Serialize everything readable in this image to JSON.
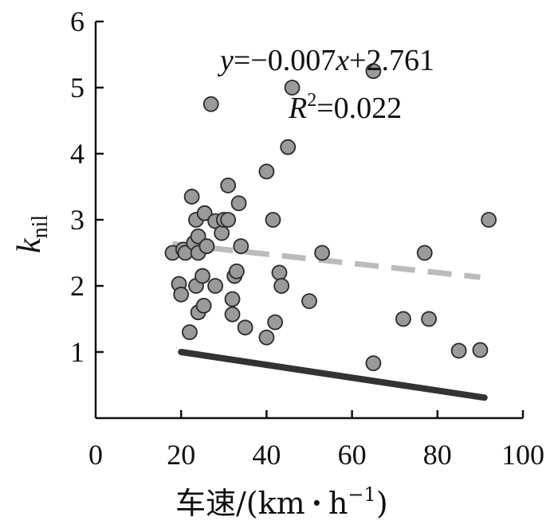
{
  "chart_data": {
    "type": "scatter",
    "xlabel_main": "车速/(km",
    "xlabel_dot": "·",
    "xlabel_unit": "h",
    "xlabel_exp": "−1",
    "xlabel_close": ")",
    "ylabel_main": "k",
    "ylabel_sub": "nil",
    "xlim": [
      0,
      100
    ],
    "ylim": [
      0,
      6
    ],
    "xticks": [
      "0",
      "20",
      "40",
      "60",
      "80",
      "100"
    ],
    "yticks": [
      "1",
      "2",
      "3",
      "4",
      "5",
      "6"
    ],
    "annotation": {
      "eq_y": "y",
      "eq_mid": "=−0.007",
      "eq_x": "x",
      "eq_tail": "+2.761",
      "r_letter": "R",
      "r_exp": "2",
      "r_tail": "=0.022"
    },
    "points": [
      [
        18,
        2.5
      ],
      [
        19.5,
        2.03
      ],
      [
        20,
        1.87
      ],
      [
        20.5,
        2.55
      ],
      [
        21,
        2.5
      ],
      [
        22,
        1.3
      ],
      [
        22.5,
        3.35
      ],
      [
        23,
        2.65
      ],
      [
        23.5,
        3.0
      ],
      [
        23.5,
        2.0
      ],
      [
        24,
        2.75
      ],
      [
        24,
        2.5
      ],
      [
        24,
        1.6
      ],
      [
        25,
        2.15
      ],
      [
        25.3,
        1.7
      ],
      [
        25.5,
        3.1
      ],
      [
        26,
        2.6
      ],
      [
        27,
        4.75
      ],
      [
        28,
        2.0
      ],
      [
        28,
        2.98
      ],
      [
        29.5,
        2.8
      ],
      [
        30,
        3.0
      ],
      [
        31,
        3.52
      ],
      [
        31,
        3.0
      ],
      [
        32,
        1.8
      ],
      [
        32,
        1.57
      ],
      [
        32.5,
        2.15
      ],
      [
        33,
        2.22
      ],
      [
        33.5,
        3.25
      ],
      [
        34,
        2.6
      ],
      [
        35,
        1.37
      ],
      [
        40,
        1.22
      ],
      [
        40,
        3.73
      ],
      [
        41.5,
        3.0
      ],
      [
        42,
        1.45
      ],
      [
        43,
        2.2
      ],
      [
        43.5,
        2.0
      ],
      [
        45,
        4.1
      ],
      [
        46,
        5.0
      ],
      [
        50,
        1.77
      ],
      [
        53,
        2.5
      ],
      [
        65,
        0.83
      ],
      [
        65,
        5.25
      ],
      [
        72,
        1.5
      ],
      [
        77,
        2.5
      ],
      [
        78,
        1.5
      ],
      [
        85,
        1.02
      ],
      [
        90,
        1.03
      ],
      [
        92,
        3.0
      ]
    ],
    "fit_line": {
      "style": "dashed",
      "color": "#bbbbbb",
      "x": [
        18,
        90
      ],
      "y": [
        2.635,
        2.131
      ]
    },
    "threshold_line": {
      "style": "solid",
      "color": "#333333",
      "x": [
        20,
        91
      ],
      "y": [
        1.0,
        0.31
      ]
    },
    "point_fill": "#9a9a9a",
    "point_stroke": "#2a2a2a"
  }
}
